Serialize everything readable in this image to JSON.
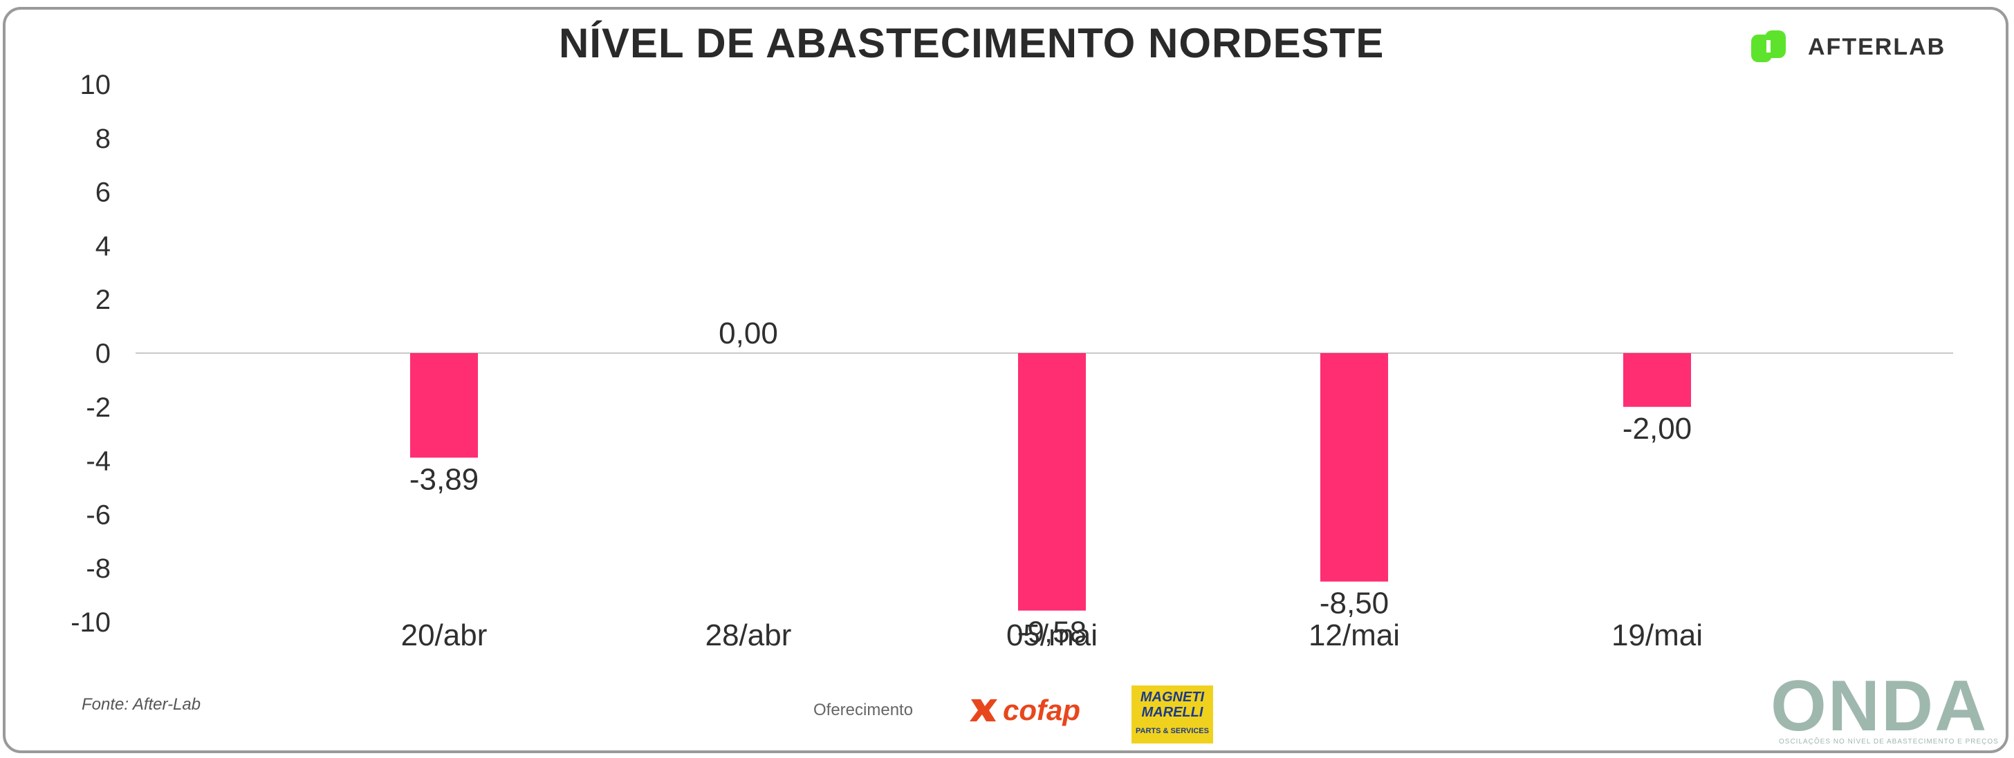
{
  "header": {
    "title": "NÍVEL DE ABASTECIMENTO NORDESTE",
    "brand_name": "AFTERLAB"
  },
  "footer": {
    "source_text": "Fonte: After-Lab",
    "offer_text": "Oferecimento",
    "cofap_label": "cofap",
    "magneti_top": "MAGNETI MARELLI",
    "magneti_bottom": "PARTS & SERVICES",
    "onda_label": "ONDA",
    "onda_sub": "OSCILAÇÕES NO NÍVEL DE ABASTECIMENTO E PREÇOS"
  },
  "colors": {
    "bar": "#ff2d72",
    "brand_green": "#5ee32d",
    "axis_text": "#2f2f2f",
    "zero_line": "#c9c9c9"
  },
  "chart_data": {
    "type": "bar",
    "title": "NÍVEL DE ABASTECIMENTO NORDESTE",
    "categories": [
      "20/abr",
      "28/abr",
      "05/mai",
      "12/mai",
      "19/mai"
    ],
    "values": [
      -3.89,
      0.0,
      -9.58,
      -8.5,
      -2.0
    ],
    "value_labels": [
      "-3,89",
      "0,00",
      "-9,58",
      "-8,50",
      "-2,00"
    ],
    "ylim": [
      -10,
      10
    ],
    "yticks": [
      10,
      8,
      6,
      4,
      2,
      0,
      -2,
      -4,
      -6,
      -8,
      -10
    ],
    "grid": false,
    "legend": "none"
  }
}
